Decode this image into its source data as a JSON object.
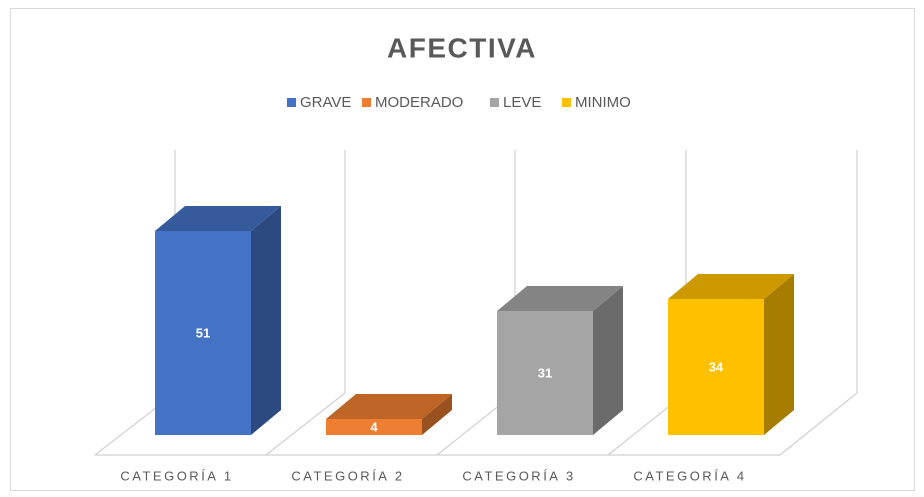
{
  "chart_data": {
    "type": "bar3d",
    "title": "AFECTIVA",
    "categories": [
      "CATEGORÍA 1",
      "CATEGORÍA 2",
      "CATEGORÍA 3",
      "CATEGORÍA 4"
    ],
    "series": [
      {
        "name": "GRAVE",
        "color": "#4472c4",
        "values": [
          51,
          null,
          null,
          null
        ]
      },
      {
        "name": "MODERADO",
        "color": "#ed7d31",
        "values": [
          null,
          4,
          null,
          null
        ]
      },
      {
        "name": "LEVE",
        "color": "#a5a5a5",
        "values": [
          null,
          null,
          31,
          null
        ]
      },
      {
        "name": "MINIMO",
        "color": "#ffc000",
        "values": [
          null,
          null,
          null,
          34
        ]
      }
    ],
    "legend": "top"
  }
}
